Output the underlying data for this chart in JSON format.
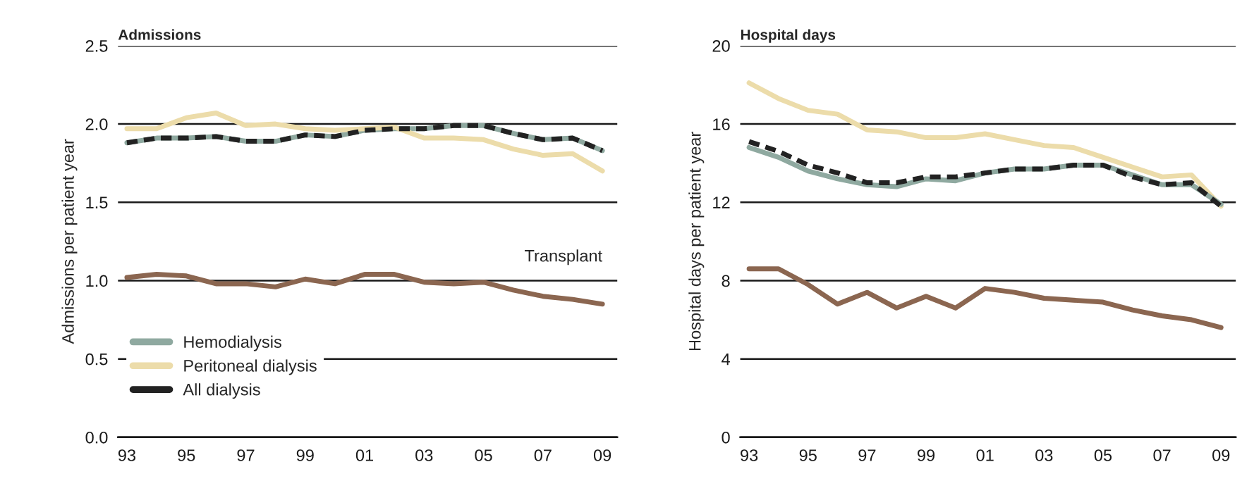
{
  "chart_data": [
    {
      "type": "line",
      "title": "Admissions",
      "ylabel": "Admissions per patient year",
      "x": [
        1993,
        1994,
        1995,
        1996,
        1997,
        1998,
        1999,
        2000,
        2001,
        2002,
        2003,
        2004,
        2005,
        2006,
        2007,
        2008,
        2009
      ],
      "xlim": [
        1992.7,
        2009.5
      ],
      "xticks": [
        {
          "value": 1993,
          "label": "93"
        },
        {
          "value": 1995,
          "label": "95"
        },
        {
          "value": 1997,
          "label": "97"
        },
        {
          "value": 1999,
          "label": "99"
        },
        {
          "value": 2001,
          "label": "01"
        },
        {
          "value": 2003,
          "label": "03"
        },
        {
          "value": 2005,
          "label": "05"
        },
        {
          "value": 2007,
          "label": "07"
        },
        {
          "value": 2009,
          "label": "09"
        }
      ],
      "ylim": [
        0,
        2.5
      ],
      "yticks": [
        {
          "value": 0,
          "label": "0.0"
        },
        {
          "value": 0.5,
          "label": "0.5"
        },
        {
          "value": 1,
          "label": "1.0"
        },
        {
          "value": 1.5,
          "label": "1.5"
        },
        {
          "value": 2,
          "label": "2.0"
        },
        {
          "value": 2.5,
          "label": "2.5"
        }
      ],
      "grid": "y",
      "legend": "bottom left",
      "annotations": [
        {
          "text": "Transplant",
          "x": 2009,
          "y": 0.85
        }
      ],
      "series": [
        {
          "name": "Hemodialysis",
          "color": "#8fa9a0",
          "line_style": "solid",
          "values": [
            1.88,
            1.91,
            1.91,
            1.92,
            1.89,
            1.89,
            1.93,
            1.92,
            1.96,
            1.97,
            1.97,
            1.99,
            1.99,
            1.94,
            1.9,
            1.91,
            1.83
          ]
        },
        {
          "name": "Peritoneal dialysis",
          "color": "#ecdcaa",
          "line_style": "solid",
          "values": [
            1.97,
            1.97,
            2.04,
            2.07,
            1.99,
            2.0,
            1.97,
            1.96,
            1.97,
            1.98,
            1.91,
            1.91,
            1.9,
            1.84,
            1.8,
            1.81,
            1.7
          ]
        },
        {
          "name": "All dialysis",
          "color": "#222222",
          "line_style": "dashed",
          "values": [
            1.88,
            1.91,
            1.91,
            1.92,
            1.89,
            1.89,
            1.93,
            1.92,
            1.96,
            1.97,
            1.97,
            1.99,
            1.99,
            1.94,
            1.9,
            1.91,
            1.83
          ]
        },
        {
          "color": "#8b6650",
          "line_style": "solid",
          "values": [
            1.02,
            1.04,
            1.03,
            0.98,
            0.98,
            0.96,
            1.01,
            0.98,
            1.04,
            1.04,
            0.99,
            0.98,
            0.99,
            0.94,
            0.9,
            0.88,
            0.85
          ]
        }
      ]
    },
    {
      "type": "line",
      "title": "Hospital days",
      "ylabel": "Hospital days per patient year",
      "x": [
        1993,
        1994,
        1995,
        1996,
        1997,
        1998,
        1999,
        2000,
        2001,
        2002,
        2003,
        2004,
        2005,
        2006,
        2007,
        2008,
        2009
      ],
      "xlim": [
        1992.7,
        2009.5
      ],
      "xticks": [
        {
          "value": 1993,
          "label": "93"
        },
        {
          "value": 1995,
          "label": "95"
        },
        {
          "value": 1997,
          "label": "97"
        },
        {
          "value": 1999,
          "label": "99"
        },
        {
          "value": 2001,
          "label": "01"
        },
        {
          "value": 2003,
          "label": "03"
        },
        {
          "value": 2005,
          "label": "05"
        },
        {
          "value": 2007,
          "label": "07"
        },
        {
          "value": 2009,
          "label": "09"
        }
      ],
      "ylim": [
        0,
        20
      ],
      "yticks": [
        0,
        4,
        8,
        12,
        16,
        20
      ],
      "grid": "y",
      "series": [
        {
          "color": "#ecdcaa",
          "line_style": "solid",
          "values": [
            18.1,
            17.3,
            16.7,
            16.5,
            15.7,
            15.6,
            15.3,
            15.3,
            15.5,
            15.2,
            14.9,
            14.8,
            14.3,
            13.8,
            13.3,
            13.4,
            11.8
          ]
        },
        {
          "color": "#8fa9a0",
          "line_style": "solid",
          "values": [
            14.8,
            14.3,
            13.6,
            13.2,
            12.9,
            12.8,
            13.2,
            13.1,
            13.5,
            13.7,
            13.7,
            13.9,
            13.9,
            13.4,
            12.9,
            12.9,
            11.9
          ]
        },
        {
          "color": "#222222",
          "line_style": "dashed",
          "values": [
            15.1,
            14.6,
            13.9,
            13.5,
            13.0,
            13.0,
            13.3,
            13.3,
            13.5,
            13.7,
            13.7,
            13.9,
            13.9,
            13.3,
            12.9,
            13.0,
            11.8
          ]
        },
        {
          "color": "#8b6650",
          "line_style": "solid",
          "values": [
            8.6,
            8.6,
            7.8,
            6.8,
            7.4,
            6.6,
            7.2,
            6.6,
            7.6,
            7.4,
            7.1,
            7.0,
            6.9,
            6.5,
            6.2,
            6.0,
            5.6
          ]
        }
      ]
    }
  ]
}
